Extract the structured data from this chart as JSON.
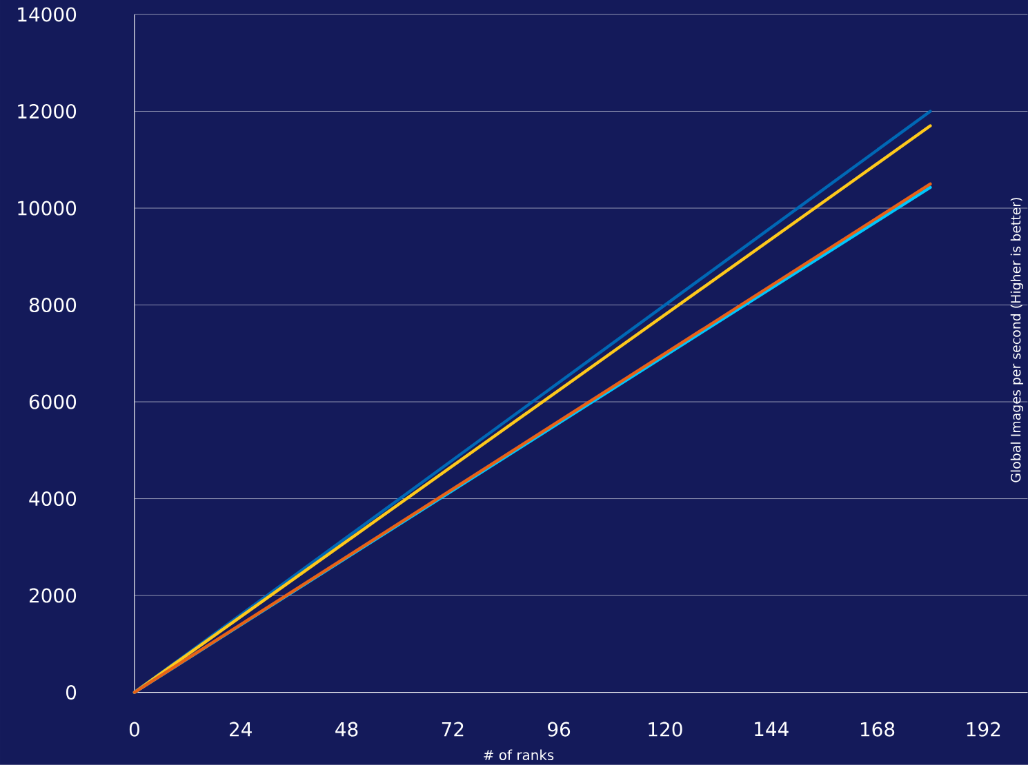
{
  "chart_data": {
    "type": "line",
    "xlabel": "# of ranks",
    "ylabel": "Global Images per second  (Higher is better)",
    "xlim": [
      0,
      202
    ],
    "xticks": [
      0,
      24,
      48,
      72,
      96,
      120,
      144,
      168,
      192
    ],
    "ylim": [
      0,
      14000
    ],
    "yticks": [
      0,
      2000,
      4000,
      6000,
      8000,
      10000,
      12000,
      14000
    ],
    "grid": "y",
    "line_style": "solid",
    "marker": "none",
    "x": [
      0,
      180
    ],
    "series": [
      {
        "color": "#0068b5",
        "values": [
          0,
          12000
        ]
      },
      {
        "color": "#fec91b",
        "values": [
          0,
          11700
        ]
      },
      {
        "color": "#00c7fd",
        "values": [
          0,
          10430
        ]
      },
      {
        "color": "#e96115",
        "values": [
          0,
          10500
        ]
      }
    ]
  }
}
